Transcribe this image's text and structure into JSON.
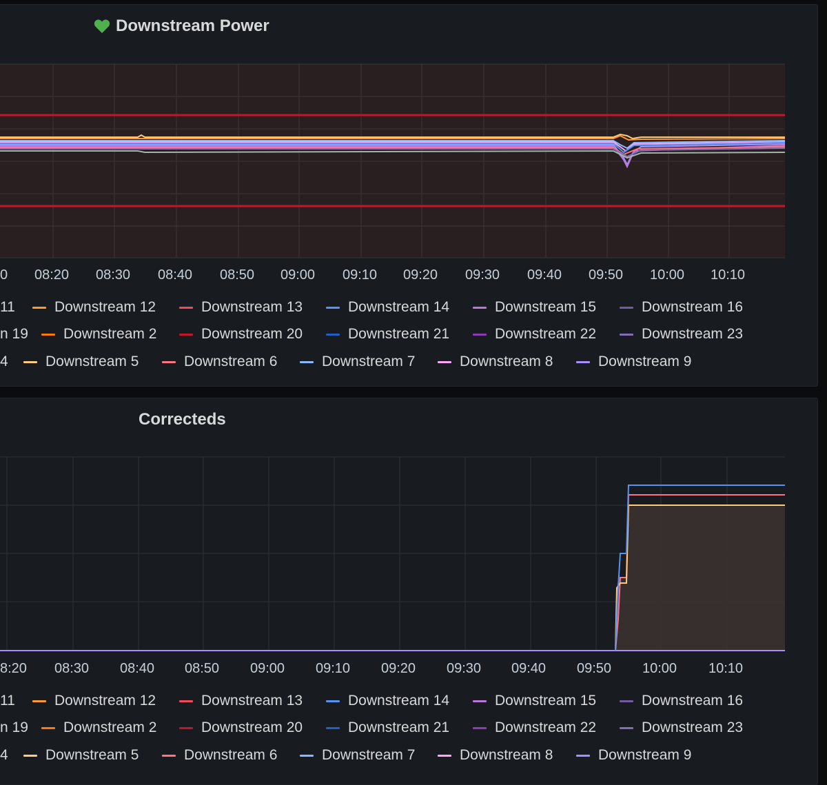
{
  "panels": [
    {
      "id": "power",
      "title": "Downstream Power",
      "health_icon": "heart-icon",
      "health_color": "#4fb14d",
      "x_ticks": [
        "0",
        "08:20",
        "08:30",
        "08:40",
        "08:50",
        "09:00",
        "09:10",
        "09:20",
        "09:30",
        "09:40",
        "09:50",
        "10:00",
        "10:10"
      ]
    },
    {
      "id": "corr",
      "title": "Correcteds",
      "x_ticks": [
        "8:20",
        "08:30",
        "08:40",
        "08:50",
        "09:00",
        "09:10",
        "09:20",
        "09:30",
        "09:40",
        "09:50",
        "10:00",
        "10:10"
      ]
    }
  ],
  "legend_rows": [
    [
      {
        "label": "11",
        "color": "#e0b400"
      },
      {
        "label": "Downstream 12",
        "color": "#ff9830"
      },
      {
        "label": "Downstream 13",
        "color": "#f2495c"
      },
      {
        "label": "Downstream 14",
        "color": "#5794f2"
      },
      {
        "label": "Downstream 15",
        "color": "#b877d9"
      },
      {
        "label": "Downstream 16",
        "color": "#705da0"
      }
    ],
    [
      {
        "label": "n 19",
        "color": "#c4162a"
      },
      {
        "label": "Downstream 2",
        "color": "#ff780a"
      },
      {
        "label": "Downstream 20",
        "color": "#c4162a"
      },
      {
        "label": "Downstream 21",
        "color": "#1f60c4"
      },
      {
        "label": "Downstream 22",
        "color": "#8f3bb8"
      },
      {
        "label": "Downstream 23",
        "color": "#806eb7"
      }
    ],
    [
      {
        "label": "4",
        "color": "#8ab8ff"
      },
      {
        "label": "Downstream 5",
        "color": "#ffcb7d"
      },
      {
        "label": "Downstream 6",
        "color": "#ff7383"
      },
      {
        "label": "Downstream 7",
        "color": "#8ab8ff"
      },
      {
        "label": "Downstream 8",
        "color": "#ffa6f9"
      },
      {
        "label": "Downstream 9",
        "color": "#a68fff"
      }
    ]
  ],
  "colors": {
    "threshold_line": "#c4162a",
    "threshold_fill": "#2a1f20",
    "grid": "#2f3237",
    "corrected_fill": "#3b3130"
  }
}
